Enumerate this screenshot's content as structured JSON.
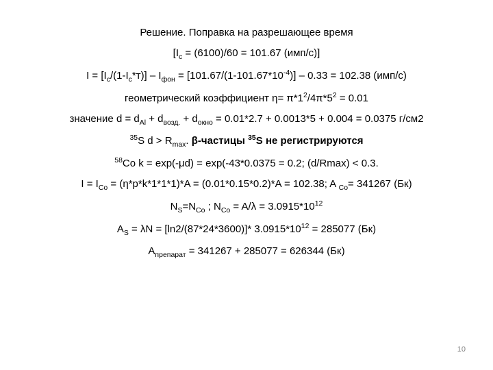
{
  "lines": {
    "l1": "Решение.  Поправка на разрешающее время",
    "l2": "[Iс = (6100)/60 = 101.67 (имп/с)]",
    "l3": "I = [Iс/(1-Iс*т)] – Iфон = [101.67/(1-101.67*10-4)] – 0.33 = 102.38  (имп/с)",
    "l4": "геометрический коэффициент η= π*12/4π*52 = 0.01",
    "l5": "значение d = dAl + dвозд. + dокно = 0.01*2.7 + 0.0013*5 + 0.004 = 0.0375 г/см2",
    "l6a": "35S  d > Rmax. ",
    "l6b": "β-частицы  35S не регистрируются",
    "l7": "58Co  k = exp(-μd) = exp(-43*0.0375 = 0.2;   (d/Rmax) < 0.3.",
    "l8": "I = ICo = (η*p*k*1*1*1)*A = (0.01*0.15*0.2)*A = 102.38;     A Co= 341267 (Бк)",
    "l9a": "NS=NCo ;       ",
    "l9b": "NCo = A/λ = 3.0915*1012",
    "l10": "AS = λN = [ln2/(87*24*3600)]* 3.0915*1012 = 285077  (Бк)",
    "l11": "Aпрепарат = 341267 + 285077 = 626344  (Бк)"
  },
  "styling": {
    "font_size_pt": 11,
    "font_family": "Arial",
    "text_color": "#000000",
    "background_color": "#ffffff",
    "page_number_color": "#7f7f7f",
    "page_number_size_pt": 8,
    "page_number_value": "10",
    "text_align": "center"
  }
}
